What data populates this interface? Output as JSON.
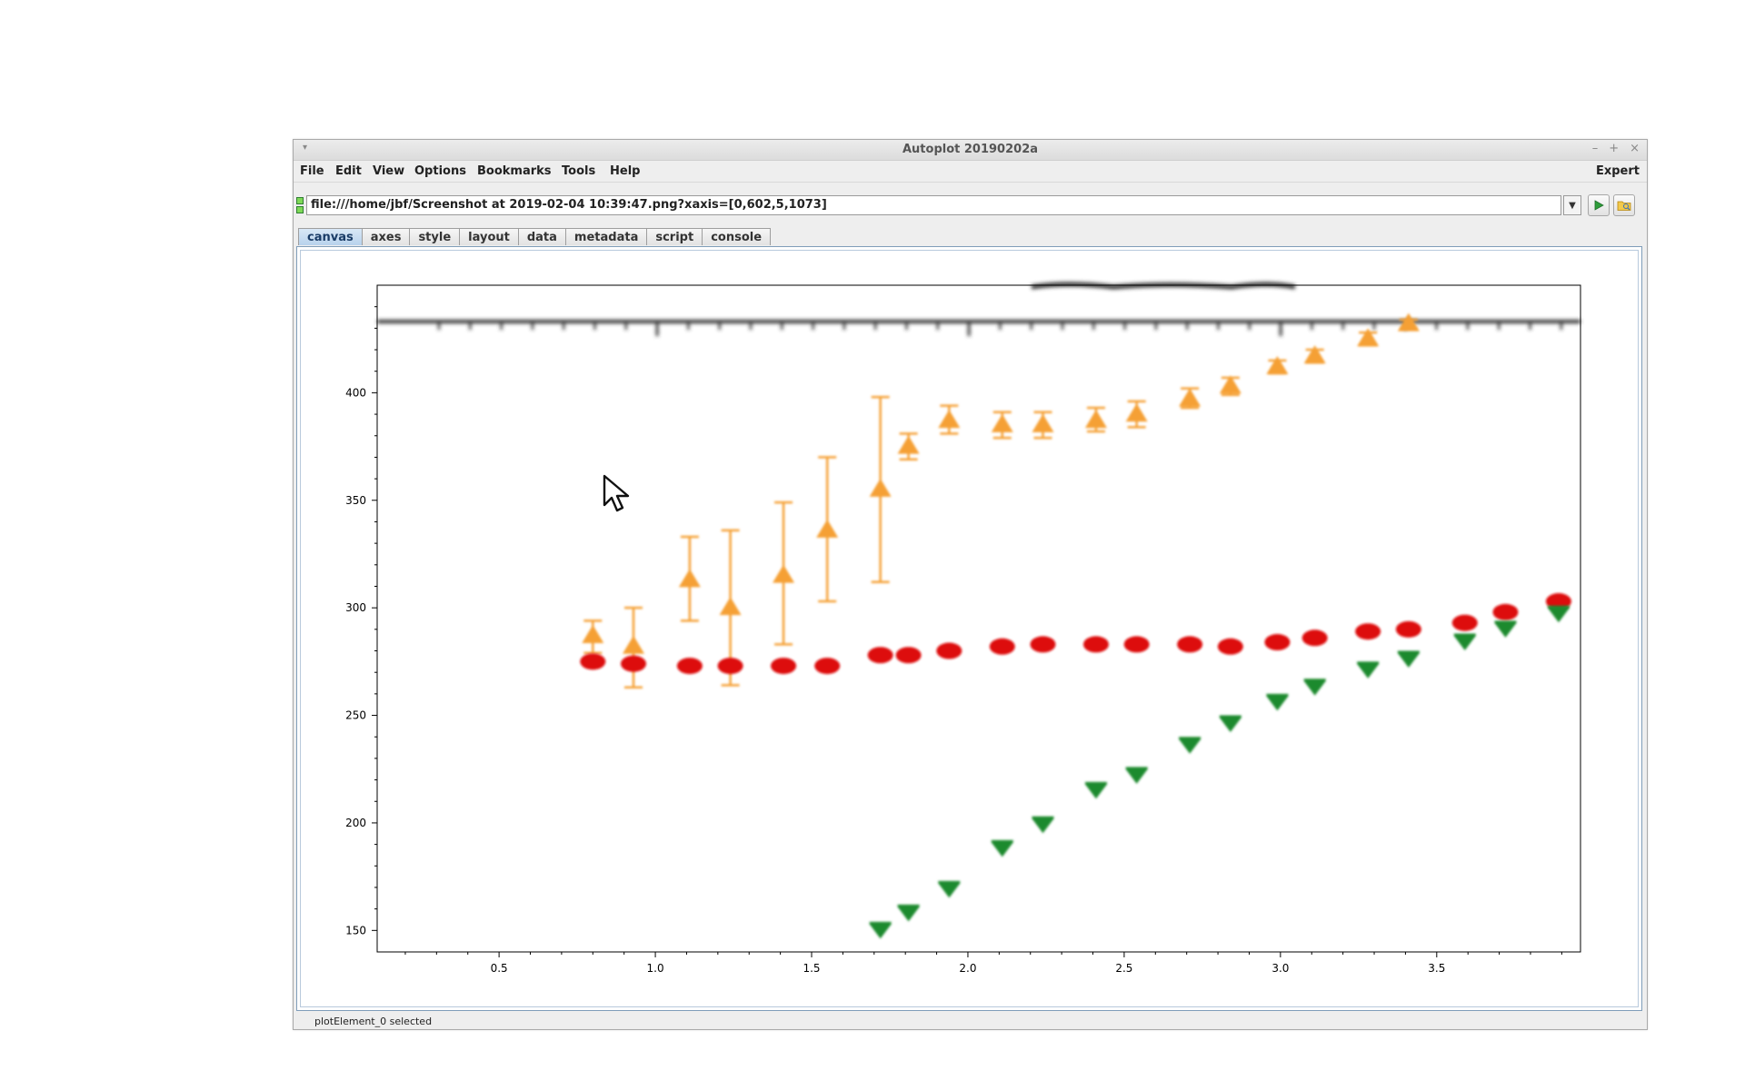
{
  "window": {
    "title": "Autoplot 20190202a",
    "minimize": "–",
    "maximize": "+",
    "close": "×"
  },
  "menubar": {
    "items": [
      "File",
      "Edit",
      "View",
      "Options",
      "Bookmarks",
      "Tools",
      "Help"
    ],
    "expert": "Expert"
  },
  "url": {
    "value": "file:///home/jbf/Screenshot at 2019-02-04 10:39:47.png?xaxis=[0,602,5,1073]"
  },
  "tabs": [
    "canvas",
    "axes",
    "style",
    "layout",
    "data",
    "metadata",
    "script",
    "console"
  ],
  "active_tab": "canvas",
  "status": "plotElement_0 selected",
  "chart_data": {
    "type": "scatter",
    "title": "",
    "xlabel": "",
    "ylabel": "",
    "xlim": [
      0.11,
      3.96
    ],
    "ylim": [
      140,
      450
    ],
    "x_ticks": [
      "0.5",
      "1.0",
      "1.5",
      "2.0",
      "2.5",
      "3.0",
      "3.5"
    ],
    "y_ticks": [
      "150",
      "200",
      "250",
      "300",
      "350",
      "400"
    ],
    "grid": false,
    "legend": "none",
    "series": [
      {
        "color": "#f5a035",
        "marker": "triangle-up",
        "points": [
          {
            "x": 0.8,
            "y": 287,
            "lo": 279,
            "hi": 294
          },
          {
            "x": 0.93,
            "y": 282,
            "lo": 263,
            "hi": 300
          },
          {
            "x": 1.11,
            "y": 313,
            "lo": 294,
            "hi": 333
          },
          {
            "x": 1.24,
            "y": 300,
            "lo": 264,
            "hi": 336
          },
          {
            "x": 1.41,
            "y": 315,
            "lo": 283,
            "hi": 349
          },
          {
            "x": 1.55,
            "y": 336,
            "lo": 303,
            "hi": 370
          },
          {
            "x": 1.72,
            "y": 355,
            "lo": 312,
            "hi": 398
          },
          {
            "x": 1.81,
            "y": 375,
            "lo": 369,
            "hi": 381
          },
          {
            "x": 1.94,
            "y": 387,
            "lo": 381,
            "hi": 394
          },
          {
            "x": 2.11,
            "y": 385,
            "lo": 379,
            "hi": 391
          },
          {
            "x": 2.24,
            "y": 385,
            "lo": 379,
            "hi": 391
          },
          {
            "x": 2.41,
            "y": 387,
            "lo": 382,
            "hi": 393
          },
          {
            "x": 2.54,
            "y": 390,
            "lo": 384,
            "hi": 396
          },
          {
            "x": 2.71,
            "y": 397,
            "lo": 393,
            "hi": 402
          },
          {
            "x": 2.84,
            "y": 403,
            "lo": 399,
            "hi": 407
          },
          {
            "x": 2.99,
            "y": 412,
            "lo": 409,
            "hi": 415
          },
          {
            "x": 3.11,
            "y": 417,
            "lo": 414,
            "hi": 420
          },
          {
            "x": 3.28,
            "y": 425,
            "lo": 422,
            "hi": 428
          },
          {
            "x": 3.41,
            "y": 432,
            "lo": 430,
            "hi": 434
          }
        ]
      },
      {
        "color": "#dd1111",
        "marker": "circle",
        "points": [
          {
            "x": 0.8,
            "y": 275
          },
          {
            "x": 0.93,
            "y": 274
          },
          {
            "x": 1.11,
            "y": 273
          },
          {
            "x": 1.24,
            "y": 273
          },
          {
            "x": 1.41,
            "y": 273
          },
          {
            "x": 1.55,
            "y": 273
          },
          {
            "x": 1.72,
            "y": 278
          },
          {
            "x": 1.81,
            "y": 278
          },
          {
            "x": 1.94,
            "y": 280
          },
          {
            "x": 2.11,
            "y": 282
          },
          {
            "x": 2.24,
            "y": 283
          },
          {
            "x": 2.41,
            "y": 283
          },
          {
            "x": 2.54,
            "y": 283
          },
          {
            "x": 2.71,
            "y": 283
          },
          {
            "x": 2.84,
            "y": 282
          },
          {
            "x": 2.99,
            "y": 284
          },
          {
            "x": 3.11,
            "y": 286
          },
          {
            "x": 3.28,
            "y": 289
          },
          {
            "x": 3.41,
            "y": 290
          },
          {
            "x": 3.59,
            "y": 293
          },
          {
            "x": 3.72,
            "y": 298
          },
          {
            "x": 3.89,
            "y": 303
          }
        ]
      },
      {
        "color": "#1f8a2e",
        "marker": "triangle-down",
        "points": [
          {
            "x": 1.72,
            "y": 150
          },
          {
            "x": 1.81,
            "y": 158
          },
          {
            "x": 1.94,
            "y": 169
          },
          {
            "x": 2.11,
            "y": 188
          },
          {
            "x": 2.24,
            "y": 199
          },
          {
            "x": 2.41,
            "y": 215
          },
          {
            "x": 2.54,
            "y": 222
          },
          {
            "x": 2.71,
            "y": 236
          },
          {
            "x": 2.84,
            "y": 246
          },
          {
            "x": 2.99,
            "y": 256
          },
          {
            "x": 3.11,
            "y": 263
          },
          {
            "x": 3.28,
            "y": 271
          },
          {
            "x": 3.41,
            "y": 276
          },
          {
            "x": 3.59,
            "y": 284
          },
          {
            "x": 3.72,
            "y": 290
          },
          {
            "x": 3.89,
            "y": 297
          }
        ]
      }
    ]
  }
}
